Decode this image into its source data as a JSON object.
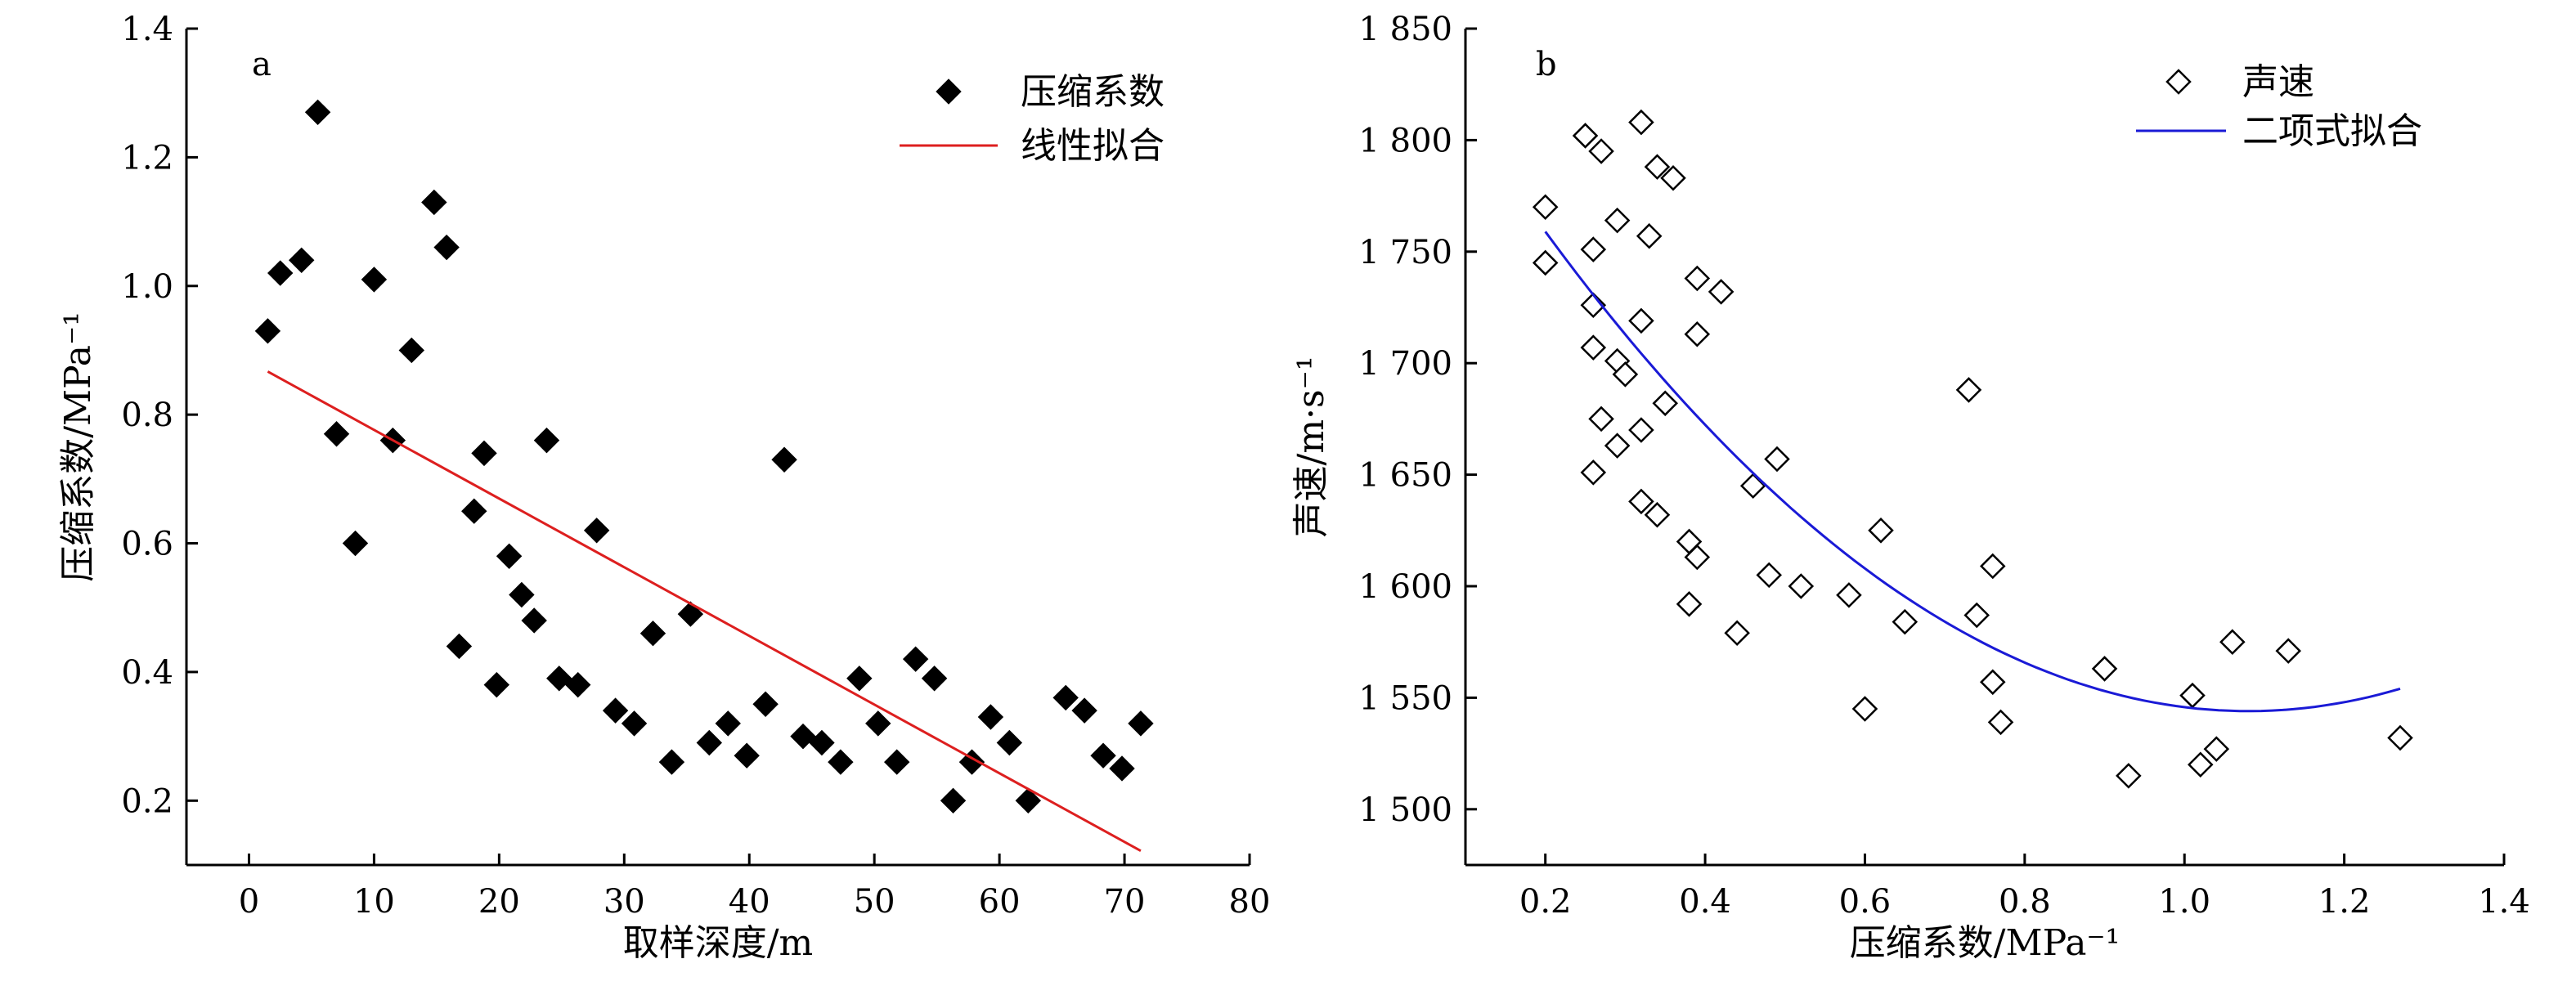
{
  "chart_data": [
    {
      "type": "scatter",
      "panel_label": "a",
      "xlabel": "取样深度/m",
      "ylabel": "压缩系数/MPa⁻¹",
      "xlim": [
        -5,
        80
      ],
      "ylim": [
        0.1,
        1.4
      ],
      "xticks": [
        0,
        10,
        20,
        30,
        40,
        50,
        60,
        70,
        80
      ],
      "yticks": [
        0.2,
        0.4,
        0.6,
        0.8,
        1.0,
        1.2,
        1.4
      ],
      "ytick_labels": [
        "0.2",
        "0.4",
        "0.6",
        "0.8",
        "1.0",
        "1.2",
        "1.4"
      ],
      "legend_position": "top-right",
      "series": [
        {
          "name": "压缩系数",
          "marker": "filled-diamond",
          "color": "#000000",
          "points": [
            [
              1.5,
              0.93
            ],
            [
              2.5,
              1.02
            ],
            [
              4.2,
              1.04
            ],
            [
              5.5,
              1.27
            ],
            [
              7.0,
              0.77
            ],
            [
              8.5,
              0.6
            ],
            [
              10.0,
              1.01
            ],
            [
              11.5,
              0.76
            ],
            [
              13.0,
              0.9
            ],
            [
              14.8,
              1.13
            ],
            [
              15.8,
              1.06
            ],
            [
              16.8,
              0.44
            ],
            [
              18.0,
              0.65
            ],
            [
              18.8,
              0.74
            ],
            [
              19.8,
              0.38
            ],
            [
              20.8,
              0.58
            ],
            [
              21.8,
              0.52
            ],
            [
              22.8,
              0.48
            ],
            [
              23.8,
              0.76
            ],
            [
              24.8,
              0.39
            ],
            [
              26.3,
              0.38
            ],
            [
              27.8,
              0.62
            ],
            [
              29.3,
              0.34
            ],
            [
              30.8,
              0.32
            ],
            [
              32.3,
              0.46
            ],
            [
              33.8,
              0.26
            ],
            [
              35.3,
              0.49
            ],
            [
              36.8,
              0.29
            ],
            [
              38.3,
              0.32
            ],
            [
              39.8,
              0.27
            ],
            [
              41.3,
              0.35
            ],
            [
              42.8,
              0.73
            ],
            [
              44.3,
              0.3
            ],
            [
              45.8,
              0.29
            ],
            [
              47.3,
              0.26
            ],
            [
              48.8,
              0.39
            ],
            [
              50.3,
              0.32
            ],
            [
              51.8,
              0.26
            ],
            [
              53.3,
              0.42
            ],
            [
              54.8,
              0.39
            ],
            [
              56.3,
              0.2
            ],
            [
              57.8,
              0.26
            ],
            [
              59.3,
              0.33
            ],
            [
              60.8,
              0.29
            ],
            [
              62.3,
              0.2
            ],
            [
              65.3,
              0.36
            ],
            [
              66.8,
              0.34
            ],
            [
              68.3,
              0.27
            ],
            [
              69.8,
              0.25
            ],
            [
              71.3,
              0.32
            ]
          ]
        },
        {
          "name": "线性拟合",
          "type": "line",
          "color": "#dd1f1f",
          "x": [
            1.5,
            71.3
          ],
          "y": [
            0.867,
            0.122
          ]
        }
      ]
    },
    {
      "type": "scatter",
      "panel_label": "b",
      "xlabel": "压缩系数/MPa⁻¹",
      "ylabel": "声速/m·s⁻¹",
      "xlim": [
        0.1,
        1.4
      ],
      "ylim": [
        1475,
        1850
      ],
      "xticks": [
        0.2,
        0.4,
        0.6,
        0.8,
        1.0,
        1.2,
        1.4
      ],
      "xtick_labels": [
        "0.2",
        "0.4",
        "0.6",
        "0.8",
        "1.0",
        "1.2",
        "1.4"
      ],
      "yticks": [
        1500,
        1550,
        1600,
        1650,
        1700,
        1750,
        1800,
        1850
      ],
      "ytick_labels": [
        "1 500",
        "1 550",
        "1 600",
        "1 650",
        "1 700",
        "1 750",
        "1 800",
        "1 850"
      ],
      "legend_position": "top-right",
      "series": [
        {
          "name": "声速",
          "marker": "open-diamond",
          "color": "#000000",
          "points": [
            [
              0.2,
              1770
            ],
            [
              0.2,
              1745
            ],
            [
              0.25,
              1802
            ],
            [
              0.27,
              1795
            ],
            [
              0.26,
              1751
            ],
            [
              0.26,
              1726
            ],
            [
              0.26,
              1707
            ],
            [
              0.27,
              1675
            ],
            [
              0.26,
              1651
            ],
            [
              0.29,
              1764
            ],
            [
              0.29,
              1701
            ],
            [
              0.3,
              1695
            ],
            [
              0.29,
              1663
            ],
            [
              0.32,
              1808
            ],
            [
              0.32,
              1719
            ],
            [
              0.32,
              1670
            ],
            [
              0.33,
              1757
            ],
            [
              0.34,
              1788
            ],
            [
              0.36,
              1783
            ],
            [
              0.35,
              1682
            ],
            [
              0.32,
              1638
            ],
            [
              0.34,
              1632
            ],
            [
              0.38,
              1620
            ],
            [
              0.39,
              1613
            ],
            [
              0.38,
              1592
            ],
            [
              0.39,
              1738
            ],
            [
              0.39,
              1713
            ],
            [
              0.42,
              1732
            ],
            [
              0.44,
              1579
            ],
            [
              0.46,
              1645
            ],
            [
              0.48,
              1605
            ],
            [
              0.49,
              1657
            ],
            [
              0.52,
              1600
            ],
            [
              0.58,
              1596
            ],
            [
              0.6,
              1545
            ],
            [
              0.62,
              1625
            ],
            [
              0.65,
              1584
            ],
            [
              0.73,
              1688
            ],
            [
              0.74,
              1587
            ],
            [
              0.76,
              1609
            ],
            [
              0.76,
              1557
            ],
            [
              0.77,
              1539
            ],
            [
              0.9,
              1563
            ],
            [
              0.93,
              1515
            ],
            [
              1.01,
              1551
            ],
            [
              1.02,
              1520
            ],
            [
              1.04,
              1527
            ],
            [
              1.06,
              1575
            ],
            [
              1.13,
              1571
            ],
            [
              1.27,
              1532
            ]
          ]
        },
        {
          "name": "二项式拟合",
          "type": "curve",
          "color": "#1a1ad6",
          "x_range": [
            0.2,
            1.27
          ],
          "quadratic": {
            "vertex_x": 1.08,
            "vertex_y": 1544,
            "a": 277.6
          }
        }
      ]
    }
  ]
}
